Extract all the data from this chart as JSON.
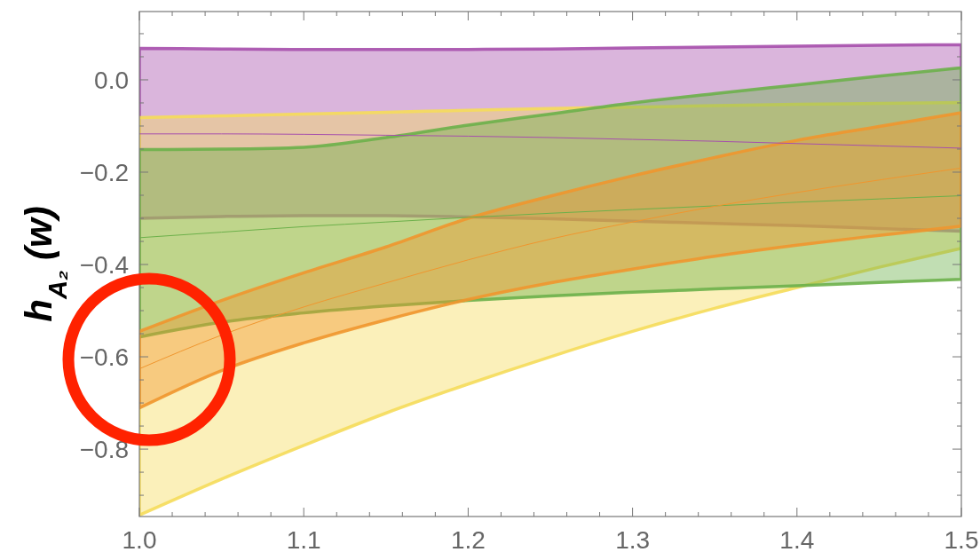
{
  "chart_data": {
    "type": "area",
    "ylabel": "h$_{A₂}$ (w)",
    "x": [
      1.0,
      1.05,
      1.1,
      1.15,
      1.2,
      1.25,
      1.3,
      1.35,
      1.4,
      1.45,
      1.5
    ],
    "xlim": [
      1.0,
      1.5
    ],
    "ylim": [
      -0.946,
      0.148
    ],
    "xticks": [
      {
        "value": 1.0,
        "label": "1.0"
      },
      {
        "value": 1.02,
        "label": null
      },
      {
        "value": 1.04,
        "label": null
      },
      {
        "value": 1.06,
        "label": null
      },
      {
        "value": 1.08,
        "label": null
      },
      {
        "value": 1.1,
        "label": "1.1"
      },
      {
        "value": 1.12,
        "label": null
      },
      {
        "value": 1.14,
        "label": null
      },
      {
        "value": 1.16,
        "label": null
      },
      {
        "value": 1.18,
        "label": null
      },
      {
        "value": 1.2,
        "label": "1.2"
      },
      {
        "value": 1.22,
        "label": null
      },
      {
        "value": 1.24,
        "label": null
      },
      {
        "value": 1.26,
        "label": null
      },
      {
        "value": 1.28,
        "label": null
      },
      {
        "value": 1.3,
        "label": "1.3"
      },
      {
        "value": 1.32,
        "label": null
      },
      {
        "value": 1.34,
        "label": null
      },
      {
        "value": 1.36,
        "label": null
      },
      {
        "value": 1.38,
        "label": null
      },
      {
        "value": 1.4,
        "label": "1.4"
      },
      {
        "value": 1.42,
        "label": null
      },
      {
        "value": 1.44,
        "label": null
      },
      {
        "value": 1.46,
        "label": null
      },
      {
        "value": 1.48,
        "label": null
      },
      {
        "value": 1.5,
        "label": "1.5"
      }
    ],
    "yticks": [
      {
        "value": 0.1,
        "label": null
      },
      {
        "value": 0.05,
        "label": null
      },
      {
        "value": 0,
        "label": "0.0"
      },
      {
        "value": -0.05,
        "label": null
      },
      {
        "value": -0.1,
        "label": null
      },
      {
        "value": -0.15,
        "label": null
      },
      {
        "value": -0.2,
        "label": "−0.2"
      },
      {
        "value": -0.25,
        "label": null
      },
      {
        "value": -0.3,
        "label": null
      },
      {
        "value": -0.35,
        "label": null
      },
      {
        "value": -0.4,
        "label": "−0.4"
      },
      {
        "value": -0.45,
        "label": null
      },
      {
        "value": -0.5,
        "label": null
      },
      {
        "value": -0.55,
        "label": null
      },
      {
        "value": -0.6,
        "label": "−0.6"
      },
      {
        "value": -0.65,
        "label": null
      },
      {
        "value": -0.7,
        "label": null
      },
      {
        "value": -0.75,
        "label": null
      },
      {
        "value": -0.8,
        "label": "−0.8"
      },
      {
        "value": -0.85,
        "label": null
      },
      {
        "value": -0.9,
        "label": null
      }
    ],
    "grid": false,
    "series": [
      {
        "type": "line",
        "color": "#a64fac",
        "values": [
          -0.117,
          -0.117,
          -0.118,
          -0.12,
          -0.122,
          -0.125,
          -0.129,
          -0.133,
          -0.138,
          -0.143,
          -0.148
        ],
        "upper": [
          0.068,
          0.067,
          0.066,
          0.066,
          0.066,
          0.067,
          0.069,
          0.071,
          0.073,
          0.075,
          0.076
        ],
        "lower": [
          -0.3,
          -0.296,
          -0.294,
          -0.294,
          -0.297,
          -0.301,
          -0.306,
          -0.311,
          -0.316,
          -0.322,
          -0.328
        ]
      },
      {
        "color": "#f5dc5a",
        "values": [
          null,
          null,
          null,
          null,
          null,
          null,
          null,
          null,
          null,
          null,
          null
        ],
        "upper": [
          -0.082,
          -0.078,
          -0.074,
          -0.07,
          -0.066,
          -0.062,
          -0.059,
          -0.056,
          -0.053,
          -0.051,
          -0.049
        ],
        "lower": [
          -0.943,
          -0.865,
          -0.792,
          -0.722,
          -0.659,
          -0.6,
          -0.545,
          -0.495,
          -0.45,
          -0.406,
          -0.365
        ]
      },
      {
        "type": "line",
        "color": "#6cb04a",
        "values": [
          -0.342,
          -0.33,
          -0.318,
          -0.308,
          -0.298,
          -0.289,
          -0.281,
          -0.273,
          -0.265,
          -0.258,
          -0.251
        ],
        "upper": [
          -0.151,
          -0.15,
          -0.146,
          -0.125,
          -0.098,
          -0.074,
          -0.05,
          -0.03,
          -0.011,
          0.008,
          0.026
        ],
        "lower": [
          -0.557,
          -0.525,
          -0.505,
          -0.49,
          -0.478,
          -0.468,
          -0.46,
          -0.453,
          -0.446,
          -0.439,
          -0.432
        ]
      },
      {
        "type": "line",
        "color": "#f0962e",
        "values": [
          -0.626,
          -0.553,
          -0.492,
          -0.44,
          -0.39,
          -0.345,
          -0.308,
          -0.274,
          -0.244,
          -0.217,
          -0.191
        ],
        "upper": [
          -0.545,
          -0.478,
          -0.418,
          -0.362,
          -0.3,
          -0.252,
          -0.208,
          -0.168,
          -0.131,
          -0.101,
          -0.071
        ],
        "lower": [
          -0.711,
          -0.63,
          -0.57,
          -0.52,
          -0.476,
          -0.44,
          -0.41,
          -0.382,
          -0.358,
          -0.337,
          -0.317
        ]
      }
    ]
  }
}
